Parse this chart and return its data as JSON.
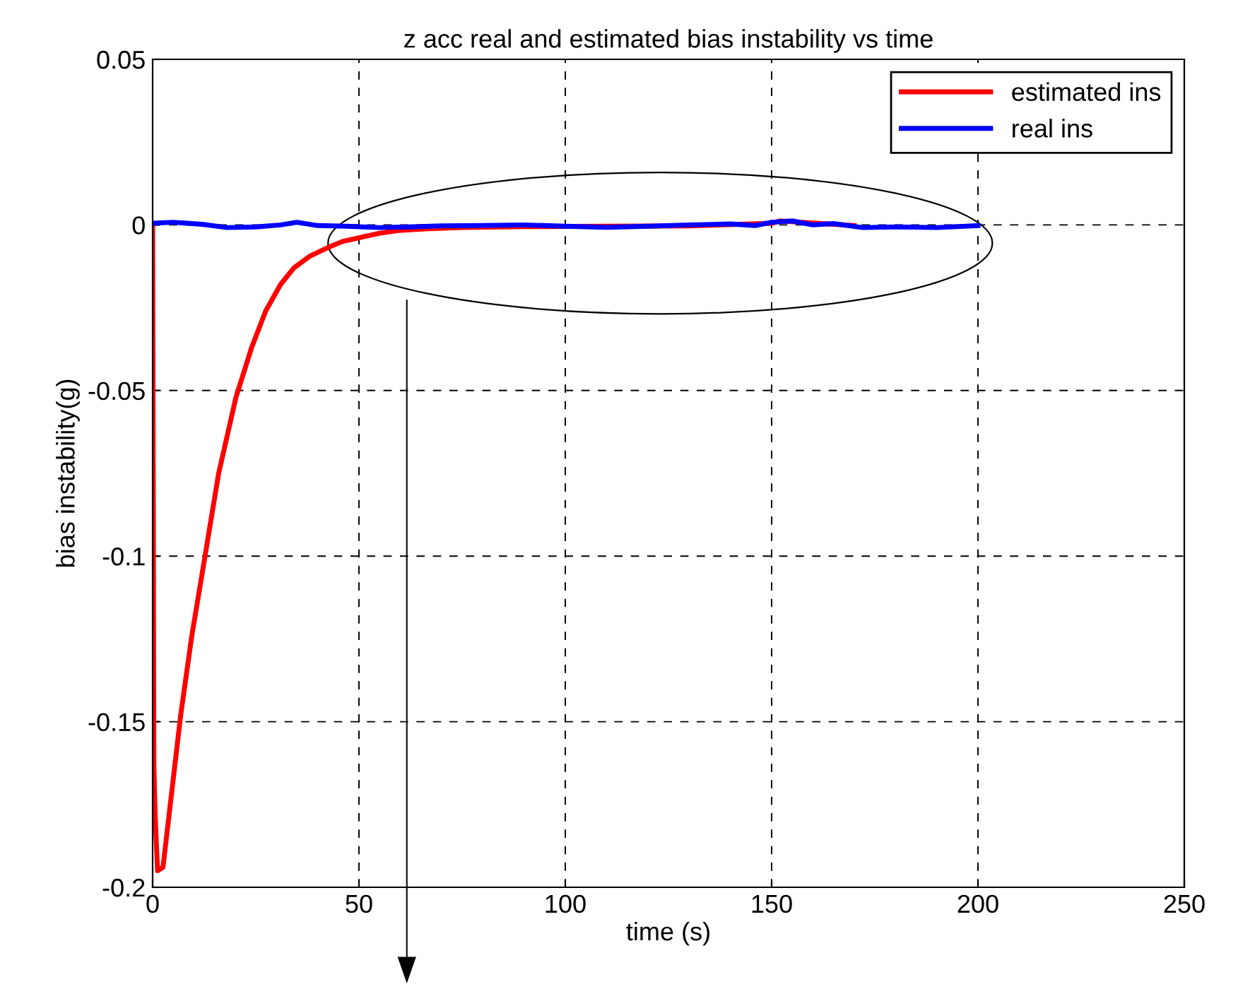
{
  "chart_data": {
    "type": "line",
    "title": "z acc real and estimated bias instability vs time",
    "xlabel": "time (s)",
    "ylabel": "bias instability(g)",
    "xlim": [
      0,
      250
    ],
    "xticks": [
      0,
      50,
      100,
      150,
      200,
      250
    ],
    "ylim": [
      -0.2,
      0.05
    ],
    "yticks": [
      -0.2,
      -0.15,
      -0.1,
      -0.05,
      0,
      0.05
    ],
    "grid": true,
    "legend": "top right",
    "line_style": "solid",
    "marker": "none",
    "series": [
      {
        "name": "estimated ins",
        "color": "#ff0000",
        "x": [
          0,
          0.3,
          0.6,
          1.2,
          2.5,
          4,
          6.8,
          9.5,
          12.7,
          16,
          20.2,
          24,
          27.4,
          31,
          34.2,
          38,
          42.5,
          46,
          50.3,
          55,
          59.6,
          66,
          75,
          90,
          110,
          130,
          150,
          152,
          170
        ],
        "values": [
          0,
          -0.163,
          -0.178,
          -0.195,
          -0.194,
          -0.178,
          -0.148,
          -0.124,
          -0.1,
          -0.075,
          -0.052,
          -0.037,
          -0.026,
          -0.018,
          -0.013,
          -0.0095,
          -0.0068,
          -0.005,
          -0.0038,
          -0.0025,
          -0.0017,
          -0.0012,
          -0.0008,
          -0.0005,
          -0.0004,
          -0.0003,
          0.0005,
          0.0012,
          -0.0002
        ]
      },
      {
        "name": "real ins",
        "color": "#0000ff",
        "x": [
          0,
          5,
          12,
          18,
          25,
          31,
          35,
          40,
          47,
          55,
          62,
          70,
          80,
          90,
          100,
          110,
          120,
          130,
          140,
          146,
          150,
          155,
          160,
          165,
          172,
          180,
          190,
          200
        ],
        "values": [
          0.0005,
          0.0008,
          0.0002,
          -0.0008,
          -0.0006,
          0,
          0.0008,
          -0.0002,
          -0.0004,
          -0.0008,
          -0.0006,
          -0.0003,
          -0.0002,
          0,
          -0.0004,
          -0.0007,
          -0.0004,
          0,
          0.0003,
          -0.0002,
          0.0008,
          0.0012,
          0,
          0.0004,
          -0.0008,
          -0.0006,
          -0.0008,
          -0.0002
        ]
      }
    ]
  }
}
